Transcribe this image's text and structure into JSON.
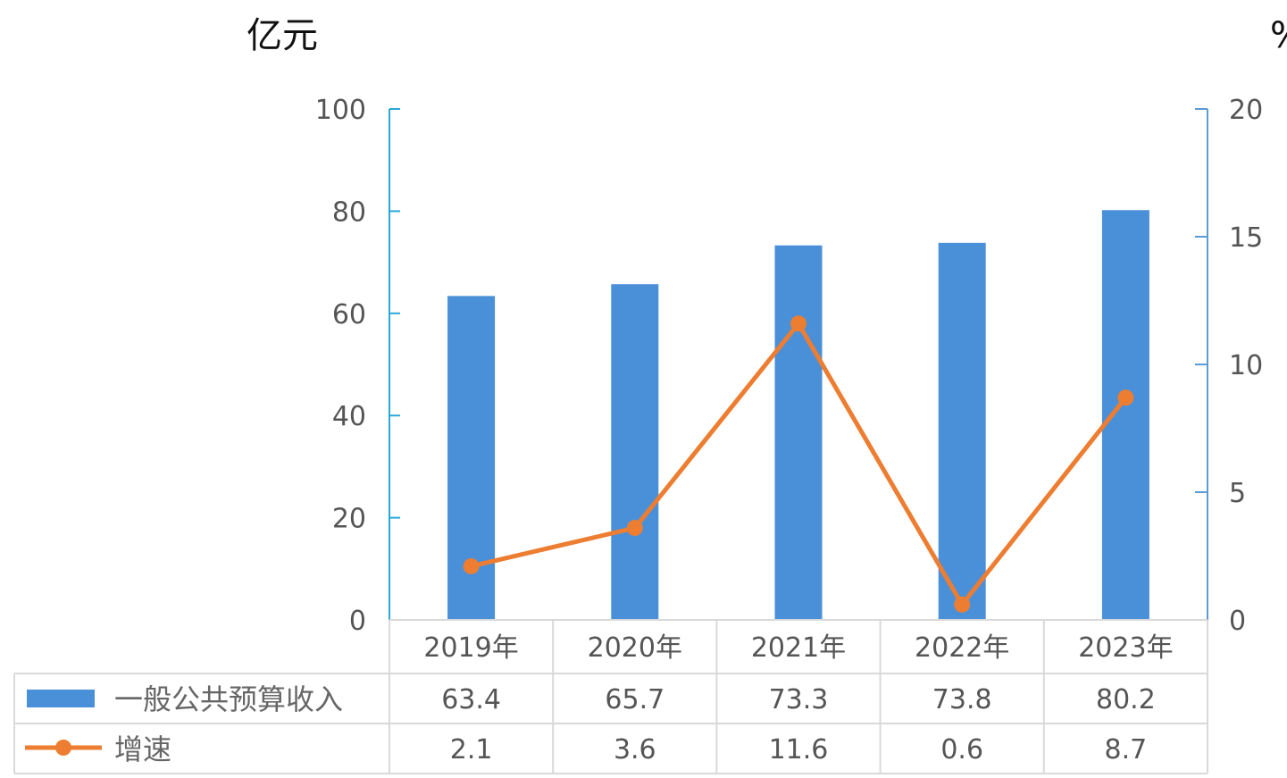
{
  "chart_data": {
    "type": "bar",
    "categories": [
      "2019年",
      "2020年",
      "2021年",
      "2022年",
      "2023年"
    ],
    "series": [
      {
        "name": "一般公共预算收入",
        "type": "bar",
        "axis": "left",
        "values": [
          63.4,
          65.7,
          73.3,
          73.8,
          80.2
        ],
        "color": "#4a90d9"
      },
      {
        "name": "增速",
        "type": "line",
        "axis": "right",
        "values": [
          2.1,
          3.6,
          11.6,
          0.6,
          8.7
        ],
        "color": "#ed7d31"
      }
    ],
    "y_left": {
      "unit": "亿元",
      "ylim": [
        0,
        100
      ],
      "ticks": [
        "0",
        "20",
        "40",
        "60",
        "80",
        "100"
      ]
    },
    "y_right": {
      "unit": "%",
      "ylim": [
        0,
        20
      ],
      "ticks": [
        "0",
        "5",
        "10",
        "15",
        "20"
      ]
    },
    "data_table": true,
    "grid": false,
    "axis_color_left": "#29a8d8",
    "axis_color_right": "#5b9bd5"
  }
}
